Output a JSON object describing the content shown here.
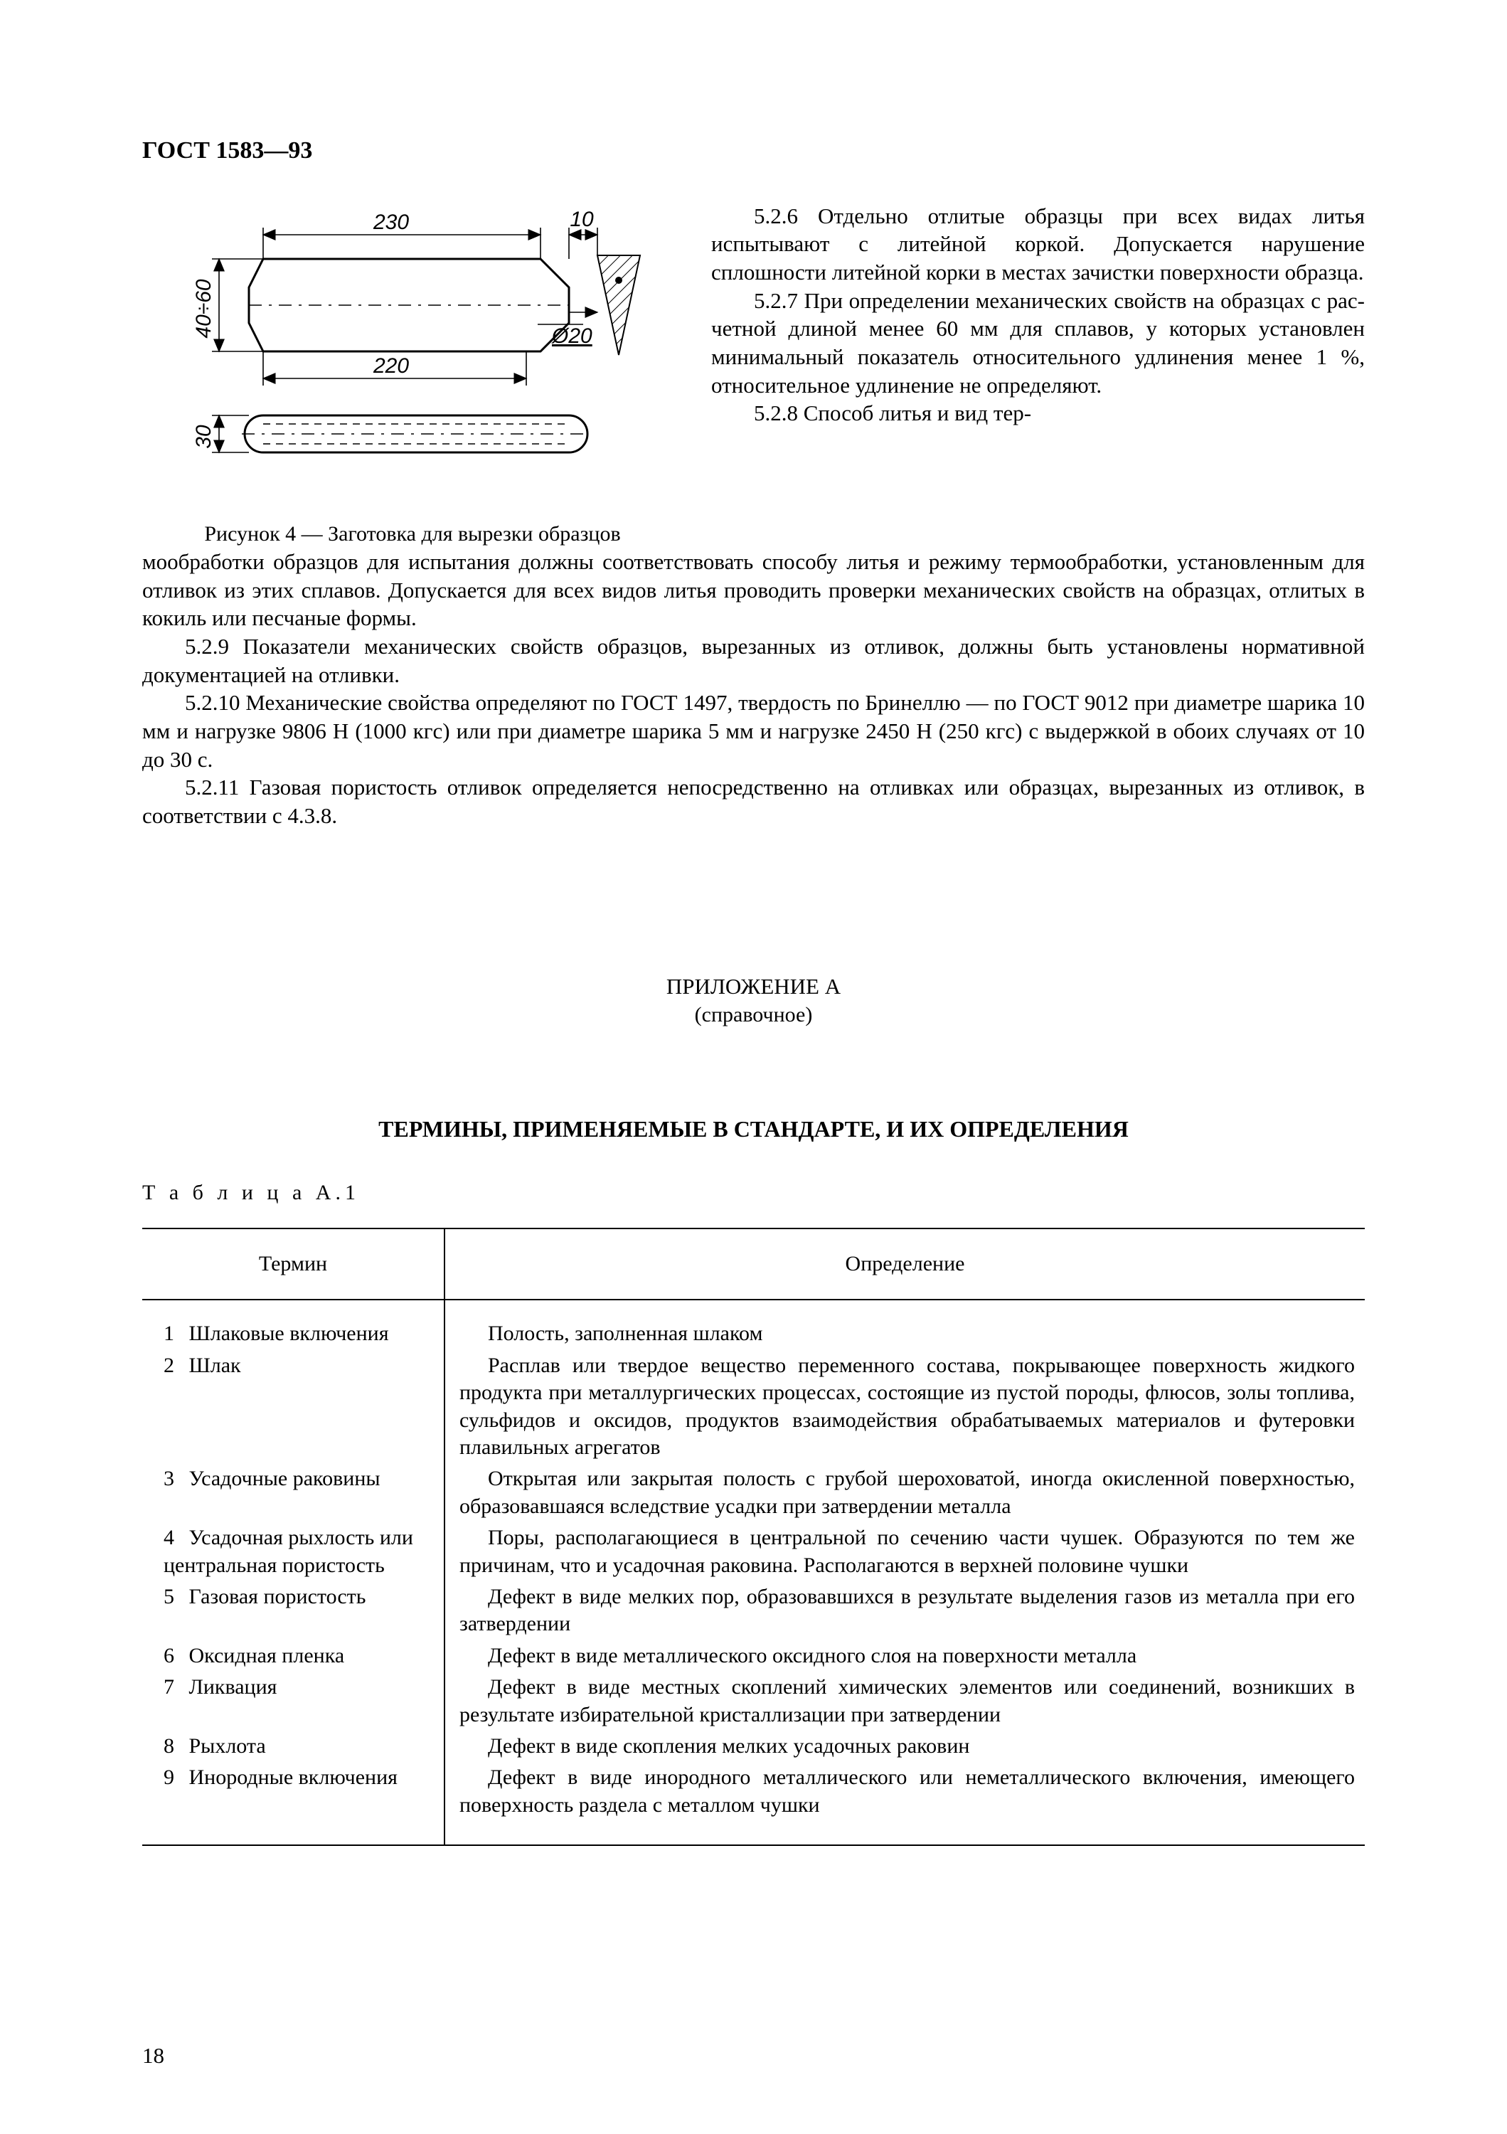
{
  "header": {
    "doc_id": "ГОСТ 1583—93"
  },
  "figure": {
    "caption": "Рисунок 4 — Заготовка для вырезки образцов",
    "dims": {
      "h_label": "40÷60",
      "top_len": "230",
      "tip_len": "10",
      "diam": "Ø20",
      "mid_len": "220",
      "bottom_h": "30"
    },
    "style": {
      "stroke": "#000000",
      "hatch_stroke": "#000000",
      "text_fill": "#000000",
      "text_size_pt": 28,
      "line_width": 3,
      "thin_line_width": 1.6
    }
  },
  "right_paras": [
    "5.2.6 Отдельно отлитые образ­цы при всех видах литья испытывают с литейной коркой. Допускается на­рушение сплошности литейной корки в местах зачистки поверхности образца.",
    "5.2.7 При определении меха­нических свойств на образцах с рас­четной длиной менее 60 мм для сплавов, у которых установлен мини­мальный показатель относительного удлинения менее 1 %, относительное удлинение не определяют.",
    "5.2.8 Способ литья и вид тер-"
  ],
  "body_paras": [
    "мообработки образцов для испытания должны соответствовать способу литья и режиму термообра­ботки, установленным для отливок из этих сплавов. Допускается для всех видов литья проводить проверки механических свойств на образцах, отлитых в кокиль или песчаные формы.",
    "5.2.9 Показатели механических свойств образцов, вырезанных из отливок, должны быть установлены нормативной документацией на отливки.",
    "5.2.10  Механические свойства определяют по ГОСТ 1497, твердость по Бринеллю — по ГОСТ 9012 при диаметре шарика 10 мм и нагрузке 9806 Н (1000 кгс) или при диаметре шарика 5 мм и нагрузке 2450 Н (250 кгс) с выдержкой в обоих случаях от 10 до 30 с.",
    "5.2.11 Газовая пористость отливок определяется непосредственно на отливках или образцах, вырезанных из отливок, в соответствии с 4.3.8."
  ],
  "appendix": {
    "head": "ПРИЛОЖЕНИЕ А",
    "sub": "(справочное)",
    "title": "ТЕРМИНЫ, ПРИМЕНЯЕМЫЕ В СТАНДАРТЕ, И ИХ ОПРЕДЕЛЕНИЯ",
    "table_label": "Т а б л и ц а  А.1"
  },
  "table": {
    "col_term": "Термин",
    "col_def": "Определение",
    "rows": [
      {
        "n": "1",
        "term": "Шлаковые включения",
        "def": "Полость, заполненная шлаком"
      },
      {
        "n": "2",
        "term": "Шлак",
        "def": "Расплав или твердое вещество переменного состава, покрывающее поверхность жидкого продукта при металлургических процессах, состоящие из пустой породы, флюсов, золы топлива,  сульфидов и оксидов, продуктов взаимодействия обраба­тываемых материалов и футеровки плавильных агрегатов"
      },
      {
        "n": "3",
        "term": "Усадочные раковины",
        "def": "Открытая или закрытая полость с грубой шероховатой, иногда окисленной поверхностью, образовавшаяся вследствие усадки при затвердении металла"
      },
      {
        "n": "4",
        "term": "Усадочная рыхлость или центральная пористость",
        "def": "Поры, располагающиеся в центральной по сечению части чушек. Образуются по тем же причинам, что и усадочная раковина. Располагаются в верхней половине чушки"
      },
      {
        "n": "5",
        "term": "Газовая пористость",
        "def": "Дефект в виде мелких пор, образовавшихся в результате выделения газов из металла при его затвердении"
      },
      {
        "n": "6",
        "term": "Оксидная пленка",
        "def": "Дефект в виде металлического оксидного слоя на поверхности металла"
      },
      {
        "n": "7",
        "term": "Ликвация",
        "def": "Дефект в виде местных скоплений химических элементов или соединений, возник­ших в результате избирательной кристаллизации при затвердении"
      },
      {
        "n": "8",
        "term": "Рыхлота",
        "def": "Дефект в виде скопления мелких усадочных раковин"
      },
      {
        "n": "9",
        "term": "Инородные включения",
        "def": "Дефект в виде инородного металлического или неметаллического включения, имеющего поверхность раздела с металлом чушки"
      }
    ]
  },
  "page_number": "18",
  "colors": {
    "text": "#000000",
    "background": "#ffffff",
    "border": "#000000"
  }
}
